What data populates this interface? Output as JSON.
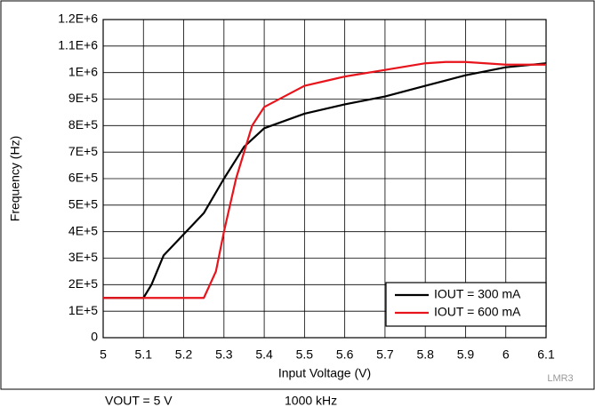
{
  "chart_data": {
    "type": "line",
    "x_label": "Input Voltage (V)",
    "y_label": "Frequency (Hz)",
    "annotations": [
      "VOUT = 5 V",
      "1000 kHz",
      "LMR3"
    ],
    "xlim": [
      5,
      6.1
    ],
    "xticks": [
      5,
      5.1,
      5.2,
      5.3,
      5.4,
      5.5,
      5.6,
      5.7,
      5.8,
      5.9,
      6,
      6.1
    ],
    "ylim": [
      0,
      1200000
    ],
    "yticks": [
      0,
      {
        "value": 100000,
        "label": "1E+5"
      },
      {
        "value": 200000,
        "label": "2E+5"
      },
      {
        "value": 300000,
        "label": "3E+5"
      },
      {
        "value": 400000,
        "label": "4E+5"
      },
      {
        "value": 500000,
        "label": "5E+5"
      },
      {
        "value": 600000,
        "label": "6E+5"
      },
      {
        "value": 700000,
        "label": "7E+5"
      },
      {
        "value": 800000,
        "label": "8E+5"
      },
      {
        "value": 900000,
        "label": "9E+5"
      },
      {
        "value": 1000000,
        "label": "1E+6"
      },
      {
        "value": 1100000,
        "label": "1.1E+6"
      },
      {
        "value": 1200000,
        "label": "1.2E+6"
      }
    ],
    "grid": true,
    "legend": "lower right",
    "series": [
      {
        "name": "IOUT = 300 mA",
        "color": "#000000",
        "x": [
          5,
          5.1,
          5.12,
          5.15,
          5.2,
          5.25,
          5.3,
          5.35,
          5.4,
          5.5,
          5.6,
          5.7,
          5.8,
          5.9,
          6,
          6.1
        ],
        "values": [
          150000,
          150000,
          200000,
          310000,
          390000,
          470000,
          600000,
          720000,
          790000,
          845000,
          880000,
          910000,
          950000,
          990000,
          1020000,
          1035000
        ]
      },
      {
        "name": "IOUT = 600 mA",
        "color": "#e8141c",
        "x": [
          5,
          5.25,
          5.28,
          5.3,
          5.33,
          5.37,
          5.4,
          5.5,
          5.6,
          5.7,
          5.8,
          5.85,
          5.9,
          6,
          6.1
        ],
        "values": [
          150000,
          150000,
          250000,
          400000,
          600000,
          800000,
          870000,
          950000,
          985000,
          1010000,
          1035000,
          1040000,
          1040000,
          1030000,
          1030000
        ]
      }
    ]
  }
}
